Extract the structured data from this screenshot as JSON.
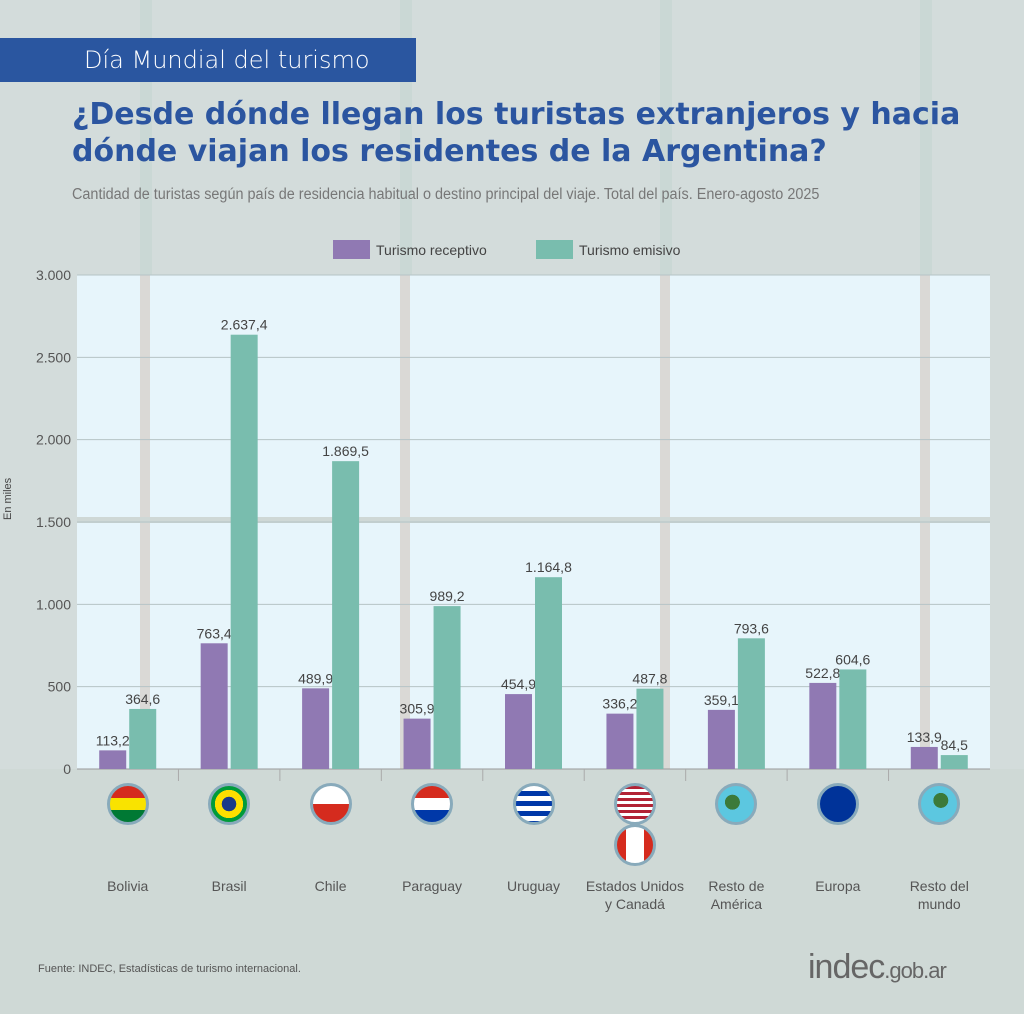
{
  "header": {
    "tag": "Día Mundial del turismo",
    "title_line1": "¿Desde dónde llegan los turistas extranjeros y hacia",
    "title_line2": "dónde viajan los residentes de la Argentina?",
    "subtitle": "Cantidad de turistas según país de residencia habitual o destino principal del viaje. Total del país. Enero-agosto 2025"
  },
  "colors": {
    "receptivo": "#9079b3",
    "emisivo": "#79bdae",
    "title": "#2b55a0",
    "tag_bg": "#2a56a0"
  },
  "chart_data": {
    "type": "bar",
    "title": "¿Desde dónde llegan los turistas extranjeros y hacia dónde viajan los residentes de la Argentina?",
    "xlabel": "",
    "ylabel": "En miles",
    "ylim": [
      0,
      3000
    ],
    "yticks": [
      "0",
      "500",
      "1.000",
      "1.500",
      "2.000",
      "2.500",
      "3.000"
    ],
    "ytick_values": [
      0,
      500,
      1000,
      1500,
      2000,
      2500,
      3000
    ],
    "grid": true,
    "legend_position": "top-center",
    "categories": [
      "Bolivia",
      "Brasil",
      "Chile",
      "Paraguay",
      "Uruguay",
      "Estados Unidos y Canadá",
      "Resto de América",
      "Europa",
      "Resto del mundo"
    ],
    "category_label_lines": [
      [
        "Bolivia"
      ],
      [
        "Brasil"
      ],
      [
        "Chile"
      ],
      [
        "Paraguay"
      ],
      [
        "Uruguay"
      ],
      [
        "Estados Unidos",
        "y Canadá"
      ],
      [
        "Resto de",
        "América"
      ],
      [
        "Europa"
      ],
      [
        "Resto del",
        "mundo"
      ]
    ],
    "series": [
      {
        "name": "Turismo receptivo",
        "color": "#9079b3",
        "values": [
          113.2,
          763.4,
          489.9,
          305.9,
          454.9,
          336.2,
          359.1,
          522.8,
          133.9
        ],
        "labels": [
          "113,2",
          "763,4",
          "489,9",
          "305,9",
          "454,9",
          "336,2",
          "359,1",
          "522,8",
          "133,9"
        ]
      },
      {
        "name": "Turismo emisivo",
        "color": "#79bdae",
        "values": [
          364.6,
          2637.4,
          1869.5,
          989.2,
          1164.8,
          487.8,
          793.6,
          604.6,
          84.5
        ],
        "labels": [
          "364,6",
          "2.637,4",
          "1.869,5",
          "989,2",
          "1.164,8",
          "487,8",
          "793,6",
          "604,6",
          "84,5"
        ]
      }
    ]
  },
  "flags": [
    "bolivia-flag",
    "brazil-flag",
    "chile-flag",
    "paraguay-flag",
    "uruguay-flag",
    "usa-canada-flags",
    "americas-globe",
    "eu-flag",
    "world-globe"
  ],
  "footer": {
    "source": "Fuente: INDEC, Estadísticas de turismo internacional.",
    "logo_main": "indec",
    "logo_suffix": ".gob.ar"
  }
}
